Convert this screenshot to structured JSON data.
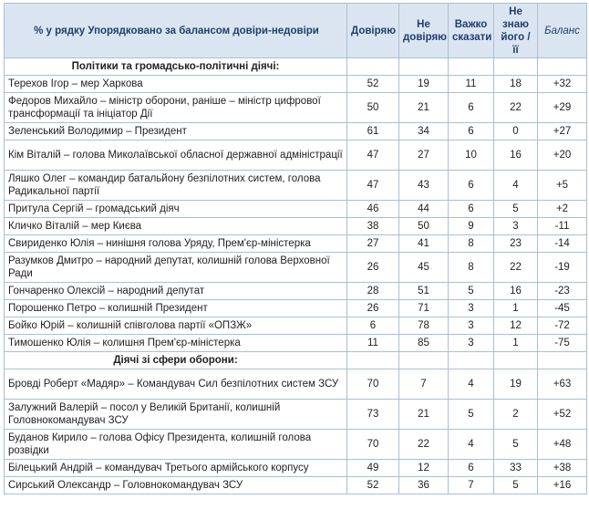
{
  "table": {
    "headers": {
      "col0": "% у рядку Упорядковано за балансом довіри-недовіри",
      "col1": "Довіряю",
      "col2": "Не довіряю",
      "col3": "Важко сказати",
      "col4": "Не знаю його / її",
      "col5": "Баланс"
    },
    "sections": [
      {
        "title": "Політики та громадсько-політичні діячі:",
        "rows": [
          {
            "name": "Терехов Ігор – мер Харкова",
            "trust": "52",
            "distrust": "19",
            "hard": "11",
            "unknown": "18",
            "balance": "+32"
          },
          {
            "name": "Федоров Михайло – міністр оборони, раніше – міністр цифрової трансформації та ініціатор Дії",
            "trust": "50",
            "distrust": "21",
            "hard": "6",
            "unknown": "22",
            "balance": "+29"
          },
          {
            "name": "Зеленський Володимир – Президент",
            "trust": "61",
            "distrust": "34",
            "hard": "6",
            "unknown": "0",
            "balance": "+27"
          },
          {
            "name": "Кім Віталій – голова Миколаївської обласної державної адміністрації",
            "trust": "47",
            "distrust": "27",
            "hard": "10",
            "unknown": "16",
            "balance": "+20"
          },
          {
            "name": "Ляшко Олег – командир батальйону безпілотних систем, голова Радикальної партії",
            "trust": "47",
            "distrust": "43",
            "hard": "6",
            "unknown": "4",
            "balance": "+5"
          },
          {
            "name": "Притула Сергій – громадський діяч",
            "trust": "46",
            "distrust": "44",
            "hard": "6",
            "unknown": "5",
            "balance": "+2"
          },
          {
            "name": "Кличко Віталій – мер Києва",
            "trust": "38",
            "distrust": "50",
            "hard": "9",
            "unknown": "3",
            "balance": "-11"
          },
          {
            "name": "Свириденко Юлія – нинішня голова Уряду, Прем'єр-міністерка",
            "trust": "27",
            "distrust": "41",
            "hard": "8",
            "unknown": "23",
            "balance": "-14"
          },
          {
            "name": "Разумков Дмитро – народний депутат, колишній голова Верховної Ради",
            "trust": "26",
            "distrust": "45",
            "hard": "8",
            "unknown": "22",
            "balance": "-19"
          },
          {
            "name": "Гончаренко Олексій – народний депутат",
            "trust": "28",
            "distrust": "51",
            "hard": "5",
            "unknown": "16",
            "balance": "-23"
          },
          {
            "name": "Порошенко Петро – колишній Президент",
            "trust": "26",
            "distrust": "71",
            "hard": "3",
            "unknown": "1",
            "balance": "-45"
          },
          {
            "name": "Бойко Юрій – колишній співголова партії «ОПЗЖ»",
            "trust": "6",
            "distrust": "78",
            "hard": "3",
            "unknown": "12",
            "balance": "-72"
          },
          {
            "name": "Тимошенко Юлія – колишня Прем'єр-міністерка",
            "trust": "11",
            "distrust": "85",
            "hard": "3",
            "unknown": "1",
            "balance": "-75"
          }
        ]
      },
      {
        "title": "Діячі зі сфери оборони:",
        "rows": [
          {
            "name": "Бровді Роберт «Мадяр» – Командувач Сил безпілотних систем ЗСУ",
            "trust": "70",
            "distrust": "7",
            "hard": "4",
            "unknown": "19",
            "balance": "+63"
          },
          {
            "name": "Залужний Валерій – посол у Великій Британії, колишній Головнокомандувач ЗСУ",
            "trust": "73",
            "distrust": "21",
            "hard": "5",
            "unknown": "2",
            "balance": "+52"
          },
          {
            "name": "Буданов Кирило – голова Офісу Президента, колишній голова розвідки",
            "trust": "70",
            "distrust": "22",
            "hard": "4",
            "unknown": "5",
            "balance": "+48"
          },
          {
            "name": "Білецький Андрій – командувач Третього армійського корпусу",
            "trust": "49",
            "distrust": "12",
            "hard": "6",
            "unknown": "33",
            "balance": "+38"
          },
          {
            "name": "Сирський Олександр – Головнокомандувач ЗСУ",
            "trust": "52",
            "distrust": "36",
            "hard": "7",
            "unknown": "5",
            "balance": "+16"
          }
        ]
      }
    ]
  }
}
